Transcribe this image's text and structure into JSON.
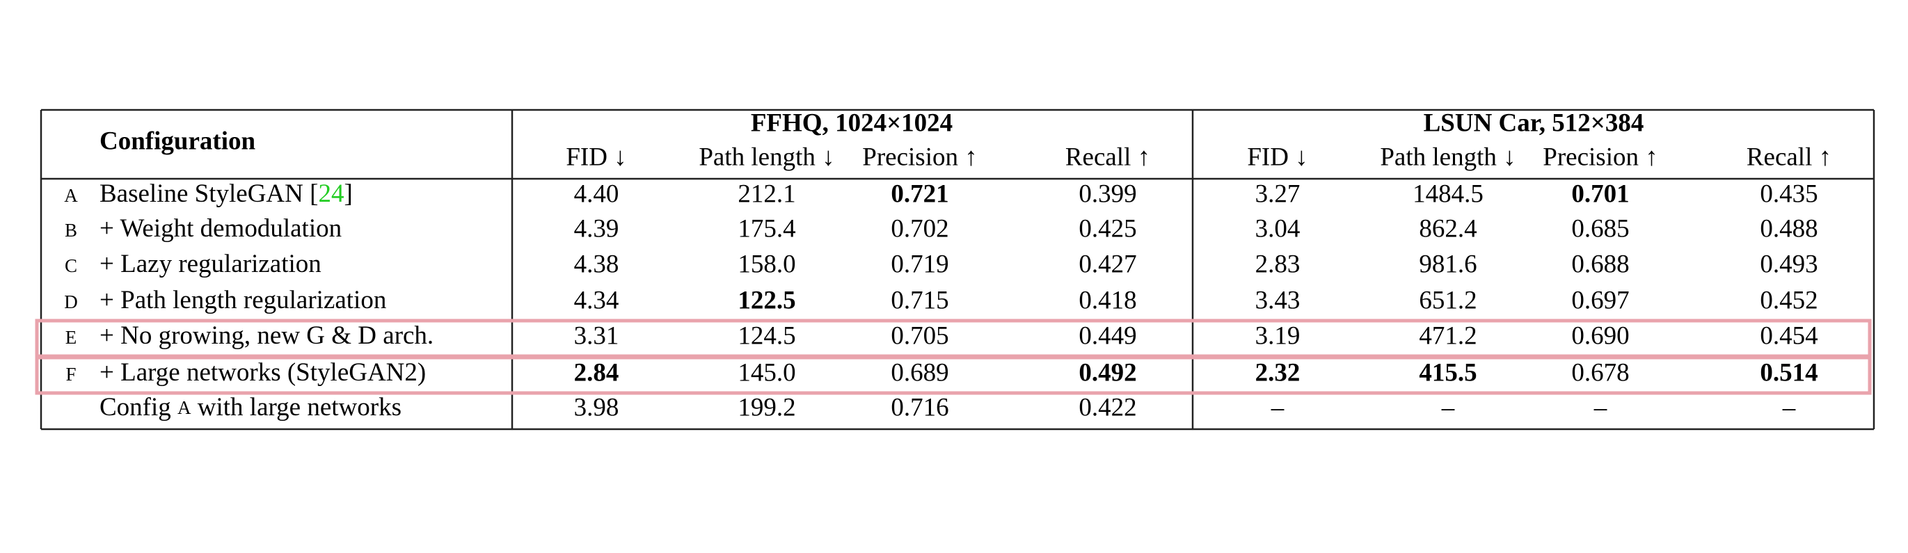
{
  "table": {
    "header": {
      "configuration": "Configuration",
      "groups": [
        {
          "title": "FFHQ, 1024×1024",
          "columns": [
            "FID ↓",
            "Path length ↓",
            "Precision ↑",
            "Recall ↑"
          ]
        },
        {
          "title": "LSUN Car, 512×384",
          "columns": [
            "FID ↓",
            "Path length ↓",
            "Precision ↑",
            "Recall ↑"
          ]
        }
      ]
    },
    "rows": [
      {
        "id": "A",
        "label": [
          {
            "text": "Baseline StyleGAN ["
          },
          {
            "text": "24",
            "style": "cite"
          },
          {
            "text": "]"
          }
        ],
        "cells": [
          "4.40",
          "212.1",
          "0.721",
          "0.399",
          "3.27",
          "1484.5",
          "0.701",
          "0.435"
        ],
        "bold": [
          2,
          6
        ]
      },
      {
        "id": "B",
        "label": [
          {
            "text": "+ Weight demodulation"
          }
        ],
        "cells": [
          "4.39",
          "175.4",
          "0.702",
          "0.425",
          "3.04",
          "862.4",
          "0.685",
          "0.488"
        ],
        "bold": []
      },
      {
        "id": "C",
        "label": [
          {
            "text": "+ Lazy regularization"
          }
        ],
        "cells": [
          "4.38",
          "158.0",
          "0.719",
          "0.427",
          "2.83",
          "981.6",
          "0.688",
          "0.493"
        ],
        "bold": []
      },
      {
        "id": "D",
        "label": [
          {
            "text": "+ Path length regularization"
          }
        ],
        "cells": [
          "4.34",
          "122.5",
          "0.715",
          "0.418",
          "3.43",
          "651.2",
          "0.697",
          "0.452"
        ],
        "bold": [
          1
        ]
      },
      {
        "id": "E",
        "label": [
          {
            "text": "+ No growing, new G & D arch."
          }
        ],
        "cells": [
          "3.31",
          "124.5",
          "0.705",
          "0.449",
          "3.19",
          "471.2",
          "0.690",
          "0.454"
        ],
        "bold": [],
        "highlighted": true
      },
      {
        "id": "F",
        "label": [
          {
            "text": "+ Large networks (StyleGAN2)"
          }
        ],
        "cells": [
          "2.84",
          "145.0",
          "0.689",
          "0.492",
          "2.32",
          "415.5",
          "0.678",
          "0.514"
        ],
        "bold": [
          0,
          3,
          4,
          5,
          7
        ],
        "highlighted": true
      },
      {
        "label": [
          {
            "text": "Config "
          },
          {
            "text": "A",
            "style": "smallcaps"
          },
          {
            "text": " with large networks"
          }
        ],
        "cells": [
          "3.98",
          "199.2",
          "0.716",
          "0.422",
          "–",
          "–",
          "–",
          "–"
        ],
        "bold": []
      }
    ]
  }
}
